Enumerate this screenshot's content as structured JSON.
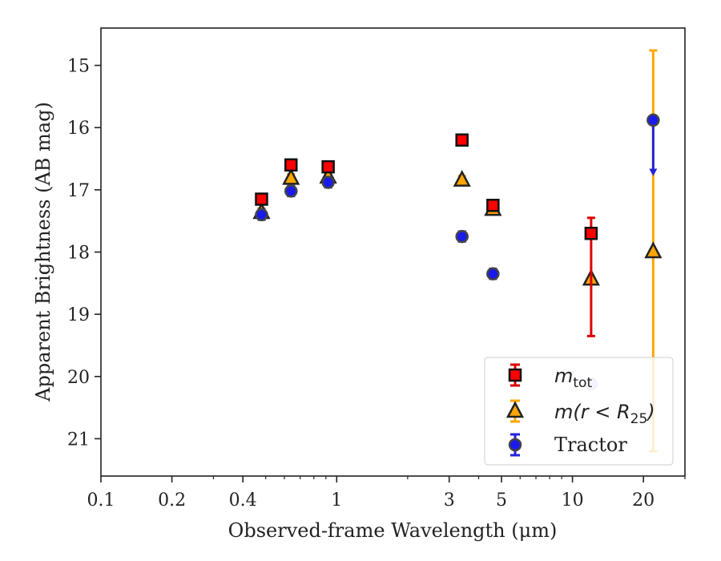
{
  "chart_data": {
    "type": "scatter",
    "xlabel": "Observed-frame Wavelength (μm)",
    "ylabel": "Apparent Brightness (AB mag)",
    "x_scale": "log",
    "y_inverted": true,
    "xlim": [
      0.1,
      30
    ],
    "ylim": [
      21.6,
      14.4
    ],
    "x_ticks": [
      0.1,
      0.2,
      0.4,
      1,
      3,
      5,
      10,
      20
    ],
    "x_tick_labels": [
      "0.1",
      "0.2",
      "0.4",
      "1",
      "3",
      "5",
      "10",
      "20"
    ],
    "y_ticks": [
      15,
      16,
      17,
      18,
      19,
      20,
      21
    ],
    "y_tick_labels": [
      "15",
      "16",
      "17",
      "18",
      "19",
      "20",
      "21"
    ],
    "grid": false,
    "legend_position": "lower-right",
    "series": [
      {
        "name": "m_tot",
        "legend_label": "mtot",
        "marker": "square",
        "color": "#ff0000",
        "error_color": "#dd0000",
        "x": [
          0.48,
          0.64,
          0.92,
          3.4,
          4.6,
          12.0
        ],
        "y": [
          17.15,
          16.6,
          16.63,
          16.2,
          17.25,
          17.7
        ],
        "yerr": [
          0.05,
          0.05,
          0.05,
          0.05,
          0.06,
          [
            0.25,
            1.65
          ]
        ]
      },
      {
        "name": "m(r < R25)",
        "legend_label": "m(r < R25)",
        "marker": "triangle",
        "color": "#ffa500",
        "error_color": "#ffa500",
        "x": [
          0.48,
          0.64,
          0.92,
          3.4,
          4.6,
          12.0,
          22.0
        ],
        "y": [
          17.35,
          16.8,
          16.78,
          16.83,
          17.3,
          18.42,
          17.98
        ],
        "yerr": [
          0.05,
          0.05,
          0.05,
          0.05,
          0.05,
          0.0,
          [
            3.22,
            3.22
          ]
        ]
      },
      {
        "name": "Tractor",
        "legend_label": "Tractor",
        "marker": "circle",
        "color": "#1a1aee",
        "error_color": "#2222dd",
        "x": [
          0.48,
          0.64,
          0.92,
          3.4,
          4.6,
          12.0,
          22.0
        ],
        "y": [
          17.4,
          17.02,
          16.88,
          17.75,
          18.35,
          20.12,
          15.88
        ],
        "yerr": [
          0.08,
          0.08,
          0.08,
          0.08,
          0.08,
          0.0,
          0.0
        ],
        "upper_limit_index": 6,
        "upper_limit_to": 16.75,
        "faded_index": 5
      }
    ]
  }
}
